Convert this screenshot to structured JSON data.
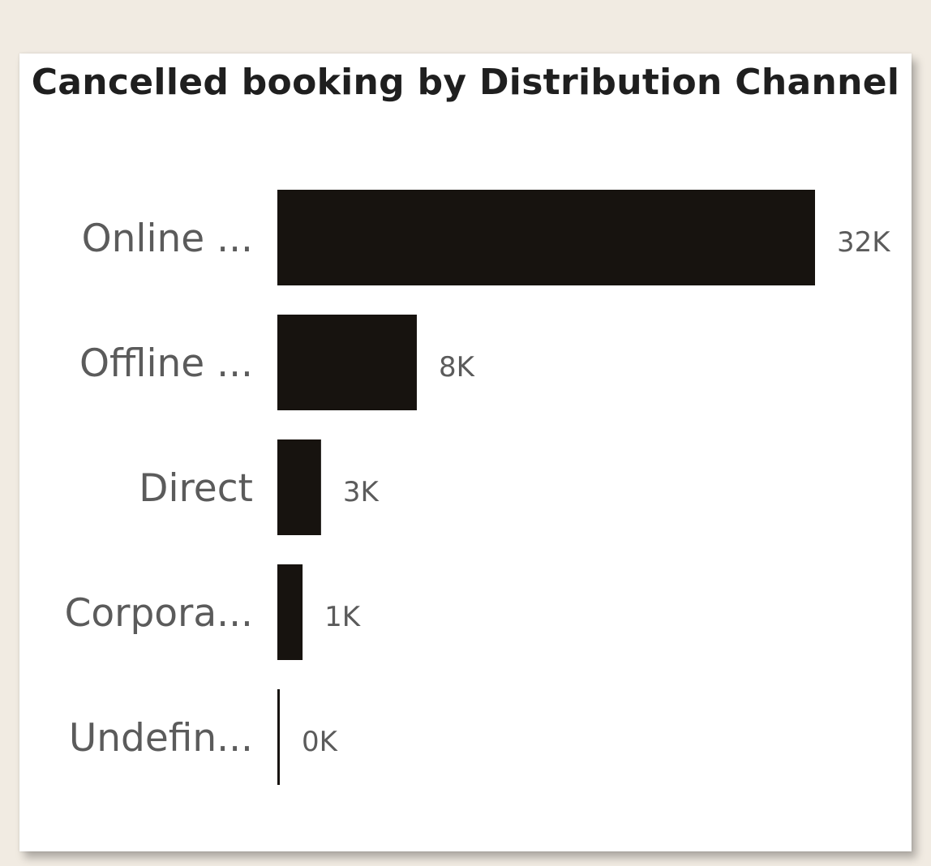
{
  "chart_data": {
    "type": "bar",
    "orientation": "horizontal",
    "title": "Cancelled booking by Distribution Channel",
    "categories": [
      "Online ...",
      "Offline ...",
      "Direct",
      "Corpora...",
      "Undefin..."
    ],
    "values": [
      32000,
      8300,
      2600,
      1500,
      0
    ],
    "value_labels": [
      "32K",
      "8K",
      "3K",
      "1K",
      "0K"
    ],
    "xlabel": "",
    "ylabel": "",
    "xlim": [
      0,
      32000
    ],
    "grid": false,
    "legend": "none",
    "bar_color": "#17130f",
    "label_color": "#5b5b5b"
  }
}
